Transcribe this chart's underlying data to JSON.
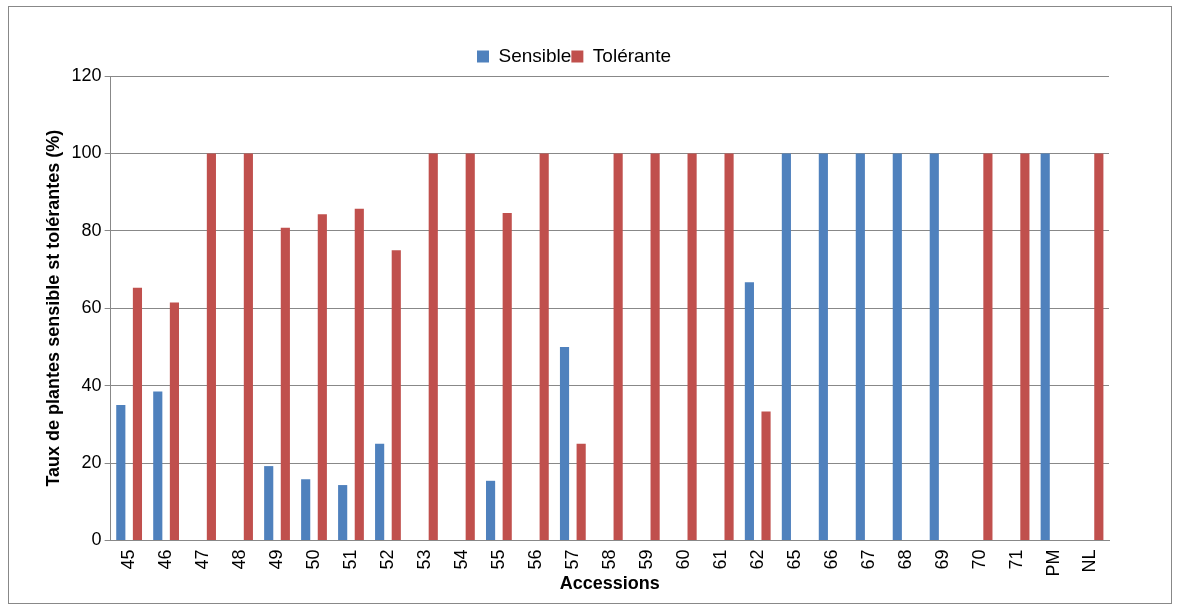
{
  "chart_data": {
    "type": "bar",
    "xlabel": "Accessions",
    "ylabel": "Taux de plantes sensible st tolérantes (%)",
    "categories": [
      "45",
      "46",
      "47",
      "48",
      "49",
      "50",
      "51",
      "52",
      "53",
      "54",
      "55",
      "56",
      "57",
      "58",
      "59",
      "60",
      "61",
      "62",
      "65",
      "66",
      "67",
      "68",
      "69",
      "70",
      "71",
      "PM",
      "NL"
    ],
    "series": [
      {
        "name": "Sensible",
        "color": "#4f81bd",
        "values": [
          35,
          38.5,
          0,
          0,
          19.2,
          15.8,
          14.3,
          25,
          0,
          0,
          15.4,
          0,
          50,
          0,
          0,
          0,
          0,
          66.7,
          100,
          100,
          100,
          100,
          100,
          0,
          0,
          100,
          0
        ]
      },
      {
        "name": "Tolérante",
        "color": "#c0504d",
        "values": [
          65.3,
          61.5,
          100,
          100,
          80.8,
          84.3,
          85.7,
          75,
          100,
          100,
          84.6,
          100,
          25,
          100,
          100,
          100,
          100,
          33.3,
          0,
          0,
          0,
          0,
          0,
          100,
          100,
          0,
          100
        ]
      }
    ],
    "ylim": [
      0,
      120
    ],
    "yticks": [
      0,
      20,
      40,
      60,
      80,
      100,
      120
    ],
    "grid": "y",
    "legend": "top"
  }
}
